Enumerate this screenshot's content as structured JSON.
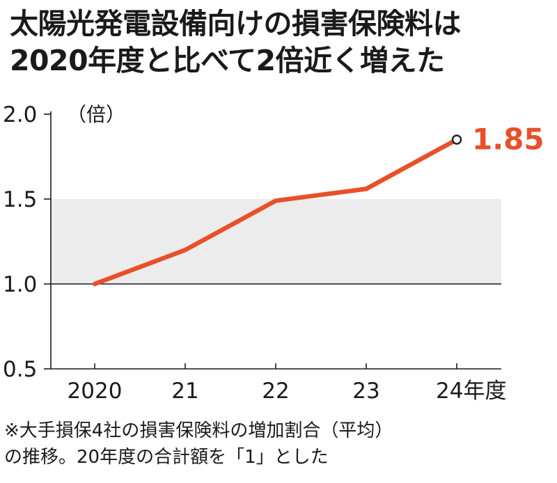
{
  "title": {
    "line1": "太陽光発電設備向けの損害保険料は",
    "line2": "2020年度と比べて2倍近く増えた"
  },
  "note": {
    "line1": "※大手損保4社の損害保険料の増加割合（平均）",
    "line2": "の推移。20年度の合計額を「1」とした"
  },
  "colors": {
    "line": "#e8502a",
    "band": "#ececec",
    "axis": "#1a1a1a",
    "end_label": "#e8502a"
  },
  "chart_data": {
    "type": "line",
    "title": "太陽光発電設備向けの損害保険料は2020年度と比べて2倍近く増えた",
    "unit": "（倍）",
    "categories": [
      "2020",
      "21",
      "22",
      "23",
      "24年度"
    ],
    "values": [
      1.0,
      1.2,
      1.49,
      1.56,
      1.85
    ],
    "yticks": [
      "2.0",
      "1.5",
      "1.0",
      "0.5"
    ],
    "ytick_values": [
      2.0,
      1.5,
      1.0,
      0.5
    ],
    "ylim": [
      0.5,
      2.0
    ],
    "shaded_band": [
      1.0,
      1.5
    ],
    "end_label": "1.85",
    "grid": false
  }
}
